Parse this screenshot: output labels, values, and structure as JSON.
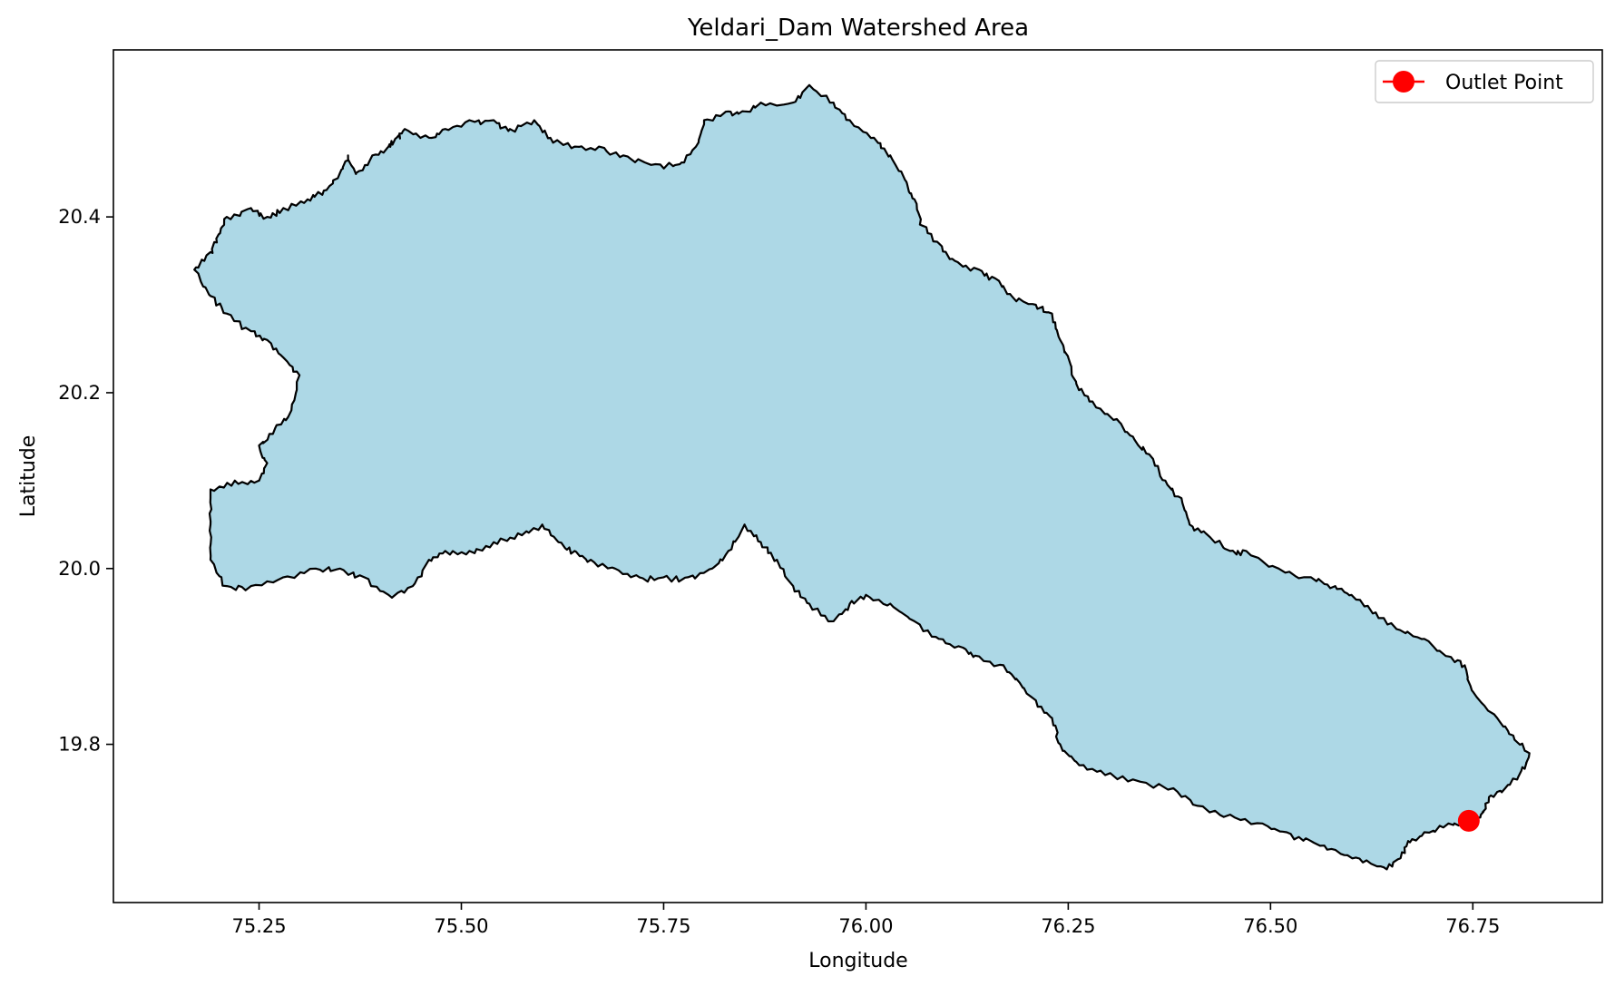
{
  "chart_data": {
    "type": "map",
    "title": "Yeldari_Dam Watershed Area",
    "xlabel": "Longitude",
    "ylabel": "Latitude",
    "xlim": [
      75.07,
      76.91
    ],
    "ylim": [
      19.62,
      20.59
    ],
    "x_ticks": [
      75.25,
      75.5,
      75.75,
      76.0,
      76.25,
      76.5,
      76.75
    ],
    "x_tick_labels": [
      "75.25",
      "75.50",
      "75.75",
      "76.00",
      "76.25",
      "76.50",
      "76.75"
    ],
    "y_ticks": [
      19.8,
      20.0,
      20.2,
      20.4
    ],
    "y_tick_labels": [
      "19.8",
      "20.0",
      "20.2",
      "20.4"
    ],
    "grid": false,
    "legend": {
      "placement": "top-right",
      "entries": [
        "Outlet Point"
      ]
    },
    "colors": {
      "fill": "#add8e6",
      "edge": "#000000",
      "outlet": "#ff0000"
    },
    "outlet_point": {
      "name": "Outlet Point",
      "lon": 76.745,
      "lat": 19.713
    },
    "watershed_boundary": [
      [
        75.17,
        20.34
      ],
      [
        75.19,
        20.36
      ],
      [
        75.2,
        20.38
      ],
      [
        75.21,
        20.4
      ],
      [
        75.24,
        20.41
      ],
      [
        75.26,
        20.4
      ],
      [
        75.28,
        20.41
      ],
      [
        75.31,
        20.42
      ],
      [
        75.33,
        20.43
      ],
      [
        75.35,
        20.45
      ],
      [
        75.36,
        20.47
      ],
      [
        75.37,
        20.45
      ],
      [
        75.39,
        20.47
      ],
      [
        75.41,
        20.48
      ],
      [
        75.42,
        20.49
      ],
      [
        75.43,
        20.5
      ],
      [
        75.46,
        20.49
      ],
      [
        75.48,
        20.5
      ],
      [
        75.51,
        20.51
      ],
      [
        75.54,
        20.51
      ],
      [
        75.56,
        20.5
      ],
      [
        75.59,
        20.51
      ],
      [
        75.61,
        20.49
      ],
      [
        75.64,
        20.48
      ],
      [
        75.67,
        20.48
      ],
      [
        75.7,
        20.47
      ],
      [
        75.74,
        20.46
      ],
      [
        75.77,
        20.46
      ],
      [
        75.79,
        20.48
      ],
      [
        75.8,
        20.51
      ],
      [
        75.83,
        20.52
      ],
      [
        75.85,
        20.52
      ],
      [
        75.87,
        20.53
      ],
      [
        75.91,
        20.53
      ],
      [
        75.93,
        20.55
      ],
      [
        75.96,
        20.53
      ],
      [
        75.98,
        20.51
      ],
      [
        76.01,
        20.49
      ],
      [
        76.03,
        20.47
      ],
      [
        76.05,
        20.44
      ],
      [
        76.06,
        20.42
      ],
      [
        76.07,
        20.39
      ],
      [
        76.09,
        20.37
      ],
      [
        76.11,
        20.35
      ],
      [
        76.14,
        20.34
      ],
      [
        76.16,
        20.33
      ],
      [
        76.18,
        20.31
      ],
      [
        76.21,
        20.3
      ],
      [
        76.23,
        20.29
      ],
      [
        76.24,
        20.26
      ],
      [
        76.25,
        20.24
      ],
      [
        76.26,
        20.21
      ],
      [
        76.28,
        20.19
      ],
      [
        76.31,
        20.17
      ],
      [
        76.33,
        20.15
      ],
      [
        76.35,
        20.13
      ],
      [
        76.37,
        20.1
      ],
      [
        76.39,
        20.08
      ],
      [
        76.4,
        20.05
      ],
      [
        76.42,
        20.04
      ],
      [
        76.45,
        20.02
      ],
      [
        76.47,
        20.02
      ],
      [
        76.51,
        20.0
      ],
      [
        76.55,
        19.99
      ],
      [
        76.58,
        19.98
      ],
      [
        76.6,
        19.97
      ],
      [
        76.63,
        19.95
      ],
      [
        76.66,
        19.93
      ],
      [
        76.69,
        19.92
      ],
      [
        76.72,
        19.9
      ],
      [
        76.74,
        19.89
      ],
      [
        76.75,
        19.86
      ],
      [
        76.78,
        19.83
      ],
      [
        76.8,
        19.81
      ],
      [
        76.82,
        19.79
      ],
      [
        76.81,
        19.77
      ],
      [
        76.79,
        19.75
      ],
      [
        76.77,
        19.74
      ],
      [
        76.76,
        19.72
      ],
      [
        76.745,
        19.713
      ],
      [
        76.72,
        19.71
      ],
      [
        76.69,
        19.7
      ],
      [
        76.67,
        19.69
      ],
      [
        76.66,
        19.67
      ],
      [
        76.64,
        19.66
      ],
      [
        76.61,
        19.67
      ],
      [
        76.58,
        19.68
      ],
      [
        76.55,
        19.69
      ],
      [
        76.52,
        19.7
      ],
      [
        76.49,
        19.71
      ],
      [
        76.45,
        19.72
      ],
      [
        76.41,
        19.73
      ],
      [
        76.38,
        19.75
      ],
      [
        76.33,
        19.76
      ],
      [
        76.29,
        19.77
      ],
      [
        76.26,
        19.78
      ],
      [
        76.24,
        19.8
      ],
      [
        76.23,
        19.83
      ],
      [
        76.21,
        19.85
      ],
      [
        76.19,
        19.87
      ],
      [
        76.17,
        19.89
      ],
      [
        76.14,
        19.9
      ],
      [
        76.12,
        19.91
      ],
      [
        76.09,
        19.92
      ],
      [
        76.06,
        19.94
      ],
      [
        76.03,
        19.96
      ],
      [
        76.0,
        19.97
      ],
      [
        75.98,
        19.96
      ],
      [
        75.96,
        19.94
      ],
      [
        75.93,
        19.96
      ],
      [
        75.91,
        19.98
      ],
      [
        75.89,
        20.01
      ],
      [
        75.87,
        20.03
      ],
      [
        75.85,
        20.05
      ],
      [
        75.83,
        20.02
      ],
      [
        75.81,
        20.0
      ],
      [
        75.78,
        19.99
      ],
      [
        75.75,
        19.99
      ],
      [
        75.72,
        19.99
      ],
      [
        75.69,
        20.0
      ],
      [
        75.66,
        20.01
      ],
      [
        75.64,
        20.02
      ],
      [
        75.62,
        20.03
      ],
      [
        75.6,
        20.05
      ],
      [
        75.57,
        20.04
      ],
      [
        75.54,
        20.03
      ],
      [
        75.51,
        20.02
      ],
      [
        75.48,
        20.02
      ],
      [
        75.46,
        20.01
      ],
      [
        75.44,
        19.98
      ],
      [
        75.41,
        19.97
      ],
      [
        75.38,
        19.99
      ],
      [
        75.35,
        20.0
      ],
      [
        75.32,
        20.0
      ],
      [
        75.28,
        19.99
      ],
      [
        75.24,
        19.98
      ],
      [
        75.21,
        19.98
      ],
      [
        75.19,
        20.01
      ],
      [
        75.19,
        20.05
      ],
      [
        75.19,
        20.09
      ],
      [
        75.22,
        20.1
      ],
      [
        75.25,
        20.1
      ],
      [
        75.26,
        20.12
      ],
      [
        75.25,
        20.14
      ],
      [
        75.27,
        20.16
      ],
      [
        75.29,
        20.18
      ],
      [
        75.3,
        20.22
      ],
      [
        75.28,
        20.24
      ],
      [
        75.26,
        20.26
      ],
      [
        75.24,
        20.27
      ],
      [
        75.21,
        20.29
      ],
      [
        75.19,
        20.31
      ],
      [
        75.17,
        20.34
      ]
    ]
  }
}
